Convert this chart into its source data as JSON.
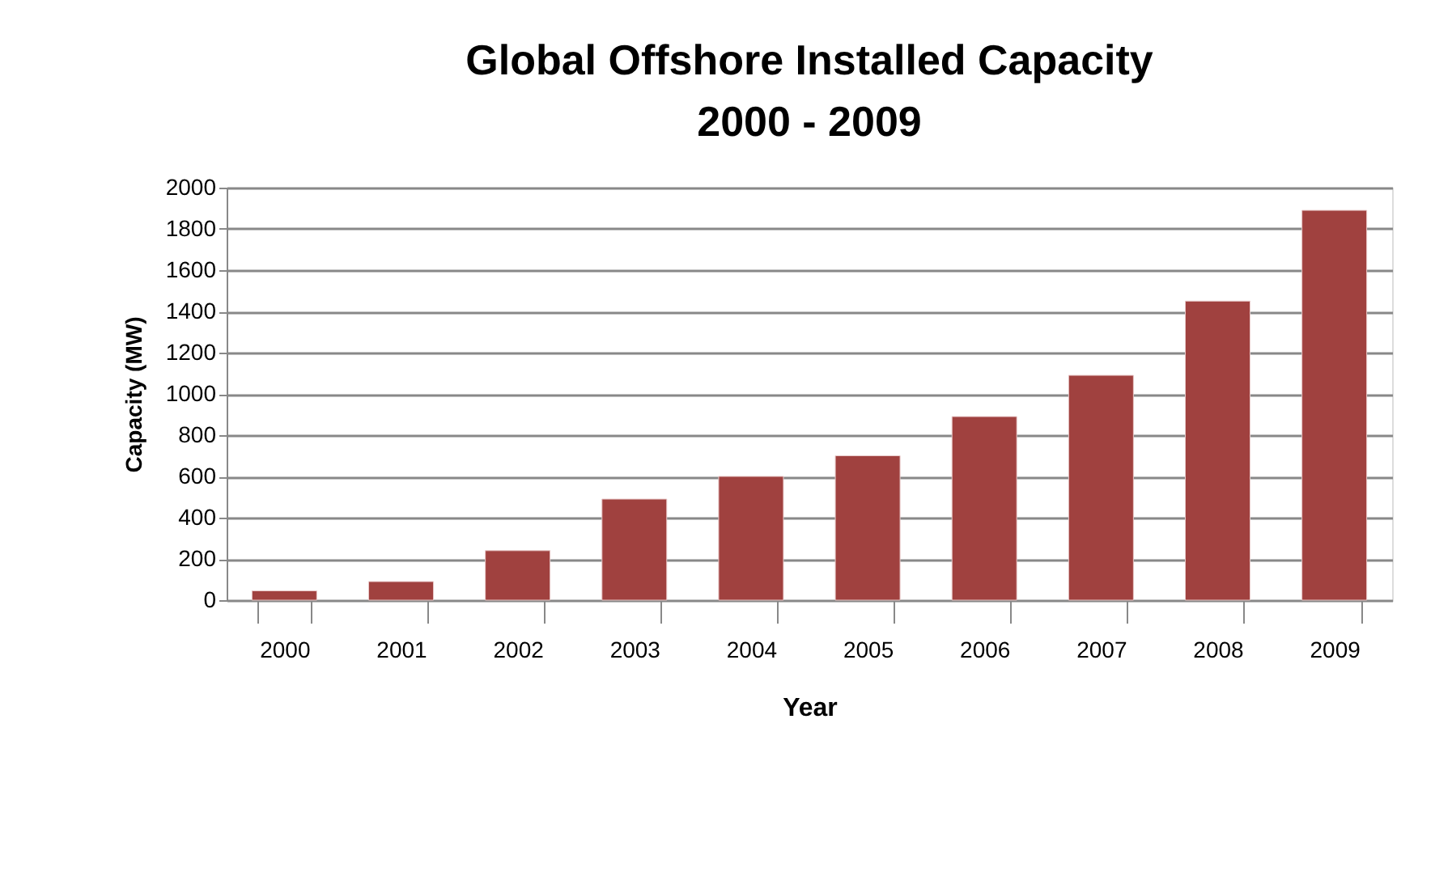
{
  "chart_data": {
    "type": "bar",
    "title": [
      "Global Offshore Installed Capacity",
      "2000 - 2009"
    ],
    "xlabel": "Year",
    "ylabel": "Capacity (MW)",
    "categories": [
      "2000",
      "2001",
      "2002",
      "2003",
      "2004",
      "2005",
      "2006",
      "2007",
      "2008",
      "2009"
    ],
    "values": [
      45,
      90,
      240,
      490,
      600,
      700,
      890,
      1090,
      1450,
      1890
    ],
    "color": "#a0413f",
    "ylim": [
      0,
      2000
    ],
    "yticks": [
      0,
      200,
      400,
      600,
      800,
      1000,
      1200,
      1400,
      1600,
      1800,
      2000
    ],
    "grid": "y"
  }
}
